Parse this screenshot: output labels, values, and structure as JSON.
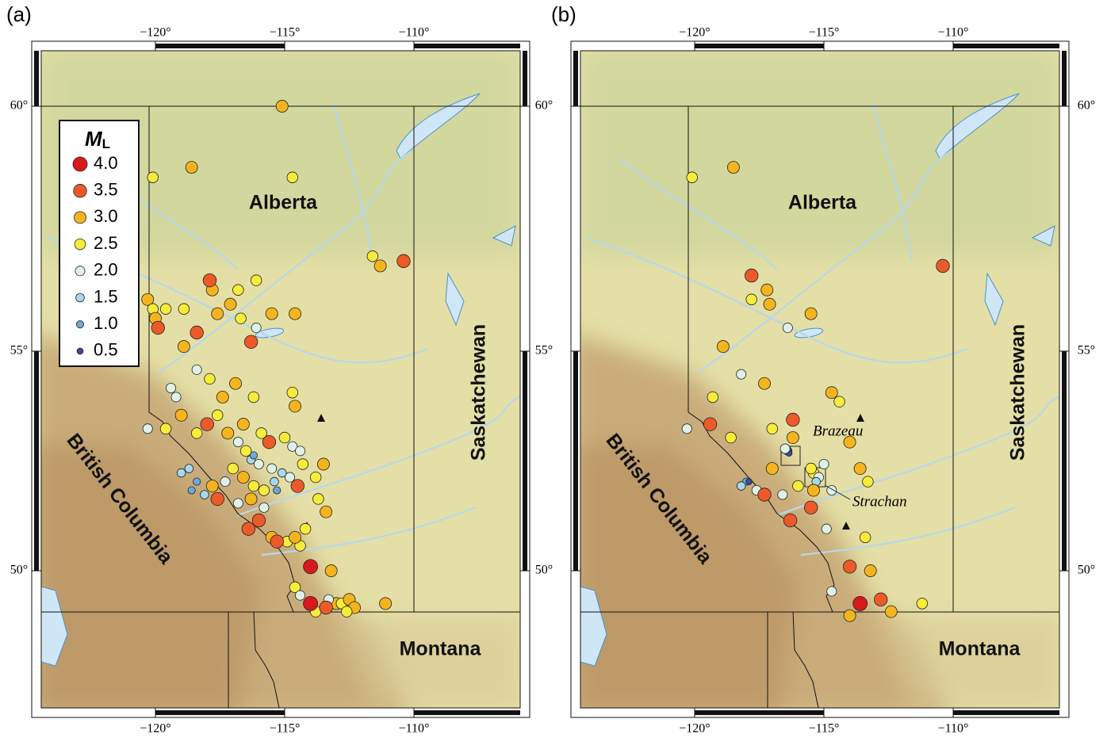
{
  "panels": [
    {
      "label": "(a)",
      "lon_ticks": [
        {
          "value": -120,
          "label": "−120°"
        },
        {
          "value": -115,
          "label": "−115°"
        },
        {
          "value": -110,
          "label": "−110°"
        }
      ],
      "lat_ticks": [
        {
          "value": 60,
          "label": "60°"
        },
        {
          "value": 55,
          "label": "55°"
        },
        {
          "value": 50,
          "label": "50°"
        }
      ],
      "regions": [
        "Alberta",
        "British Columbia",
        "Saskatchewan",
        "Montana"
      ],
      "events": [
        [
          -115.1,
          60.0,
          3.0
        ],
        [
          -120.1,
          58.6,
          2.5
        ],
        [
          -118.6,
          58.8,
          3.0
        ],
        [
          -114.7,
          58.6,
          2.5
        ],
        [
          -117.8,
          56.3,
          3.0
        ],
        [
          -116.8,
          56.3,
          2.5
        ],
        [
          -116.1,
          56.5,
          2.5
        ],
        [
          -111.6,
          57.0,
          2.5
        ],
        [
          -111.3,
          56.8,
          3.0
        ],
        [
          -120.3,
          56.1,
          3.0
        ],
        [
          -120.1,
          55.9,
          2.5
        ],
        [
          -119.6,
          55.9,
          2.5
        ],
        [
          -120.0,
          55.7,
          3.0
        ],
        [
          -118.9,
          55.1,
          3.0
        ],
        [
          -115.5,
          55.8,
          3.0
        ],
        [
          -114.6,
          55.8,
          3.0
        ],
        [
          -118.9,
          55.9,
          2.5
        ],
        [
          -117.6,
          55.8,
          3.0
        ],
        [
          -116.7,
          55.7,
          2.5
        ],
        [
          -117.1,
          56.0,
          3.0
        ],
        [
          -116.1,
          55.5,
          2.0
        ],
        [
          -118.4,
          54.6,
          2.0
        ],
        [
          -117.9,
          54.4,
          2.5
        ],
        [
          -119.4,
          54.2,
          2.0
        ],
        [
          -119.2,
          54.0,
          2.0
        ],
        [
          -117.4,
          54.0,
          3.0
        ],
        [
          -116.9,
          54.3,
          3.0
        ],
        [
          -116.2,
          54.0,
          2.5
        ],
        [
          -114.7,
          54.1,
          2.5
        ],
        [
          -114.6,
          53.8,
          3.0
        ],
        [
          -120.3,
          53.3,
          2.0
        ],
        [
          -119.6,
          53.3,
          2.5
        ],
        [
          -119.0,
          53.6,
          3.0
        ],
        [
          -118.4,
          53.2,
          2.5
        ],
        [
          -117.6,
          53.6,
          2.5
        ],
        [
          -117.2,
          53.2,
          3.0
        ],
        [
          -116.8,
          53.0,
          2.0
        ],
        [
          -116.5,
          52.8,
          2.5
        ],
        [
          -116.3,
          52.6,
          1.5
        ],
        [
          -116.2,
          52.7,
          1.0
        ],
        [
          -116.0,
          52.5,
          2.0
        ],
        [
          -116.6,
          53.4,
          3.0
        ],
        [
          -115.9,
          53.2,
          2.5
        ],
        [
          -115.0,
          53.1,
          2.5
        ],
        [
          -114.7,
          52.9,
          2.0
        ],
        [
          -114.3,
          52.5,
          2.5
        ],
        [
          -113.5,
          52.5,
          3.0
        ],
        [
          -113.8,
          52.2,
          2.5
        ],
        [
          -114.8,
          52.2,
          2.0
        ],
        [
          -115.1,
          52.3,
          1.5
        ],
        [
          -115.4,
          52.1,
          1.5
        ],
        [
          -115.3,
          51.9,
          1.0
        ],
        [
          -115.8,
          51.9,
          2.5
        ],
        [
          -116.2,
          52.0,
          2.5
        ],
        [
          -116.6,
          52.2,
          3.0
        ],
        [
          -117.0,
          52.4,
          2.5
        ],
        [
          -117.3,
          52.1,
          2.0
        ],
        [
          -117.8,
          52.0,
          3.0
        ],
        [
          -118.1,
          51.8,
          1.5
        ],
        [
          -118.4,
          52.1,
          1.0
        ],
        [
          -118.7,
          52.4,
          1.5
        ],
        [
          -119.0,
          52.3,
          1.5
        ],
        [
          -118.6,
          51.9,
          1.0
        ],
        [
          -116.8,
          51.6,
          2.0
        ],
        [
          -116.3,
          51.7,
          3.0
        ],
        [
          -115.8,
          51.5,
          2.0
        ],
        [
          -115.5,
          50.8,
          3.0
        ],
        [
          -114.9,
          50.7,
          2.5
        ],
        [
          -114.4,
          50.6,
          2.5
        ],
        [
          -114.6,
          50.8,
          3.0
        ],
        [
          -114.2,
          51.0,
          2.5
        ],
        [
          -113.4,
          51.4,
          3.0
        ],
        [
          -113.7,
          51.7,
          2.5
        ],
        [
          -113.2,
          50.0,
          3.0
        ],
        [
          -114.6,
          49.6,
          2.5
        ],
        [
          -114.4,
          49.4,
          2.0
        ],
        [
          -113.8,
          49.0,
          2.5
        ],
        [
          -113.0,
          49.2,
          3.0
        ],
        [
          -112.8,
          49.2,
          2.5
        ],
        [
          -112.5,
          49.3,
          3.0
        ],
        [
          -112.3,
          49.1,
          3.0
        ],
        [
          -112.6,
          49.0,
          2.5
        ],
        [
          -111.1,
          49.2,
          3.0
        ],
        [
          -113.3,
          49.3,
          2.0
        ],
        [
          -114.4,
          52.8,
          2.0
        ],
        [
          -115.5,
          52.4,
          2.0
        ],
        [
          -117.9,
          56.5,
          3.5
        ],
        [
          -110.4,
          56.9,
          3.5
        ],
        [
          -119.9,
          55.5,
          3.5
        ],
        [
          -118.4,
          55.4,
          3.5
        ],
        [
          -116.3,
          55.2,
          3.5
        ],
        [
          -118.0,
          53.4,
          3.5
        ],
        [
          -115.6,
          53.0,
          3.5
        ],
        [
          -114.5,
          52.0,
          3.5
        ],
        [
          -117.6,
          51.7,
          3.5
        ],
        [
          -116.0,
          51.2,
          3.5
        ],
        [
          -116.4,
          51.0,
          3.5
        ],
        [
          -115.3,
          50.7,
          3.5
        ],
        [
          -113.4,
          49.1,
          3.5
        ],
        [
          -114.0,
          50.1,
          4.0
        ],
        [
          -114.0,
          49.2,
          4.0
        ]
      ]
    },
    {
      "label": "(b)",
      "lon_ticks": [
        {
          "value": -120,
          "label": "−120°"
        },
        {
          "value": -115,
          "label": "−115°"
        },
        {
          "value": -110,
          "label": "−110°"
        }
      ],
      "lat_ticks": [
        {
          "value": 60,
          "label": "60°"
        },
        {
          "value": 55,
          "label": "55°"
        },
        {
          "value": 50,
          "label": "50°"
        }
      ],
      "regions": [
        "Alberta",
        "British Columbia",
        "Saskatchewan",
        "Montana"
      ],
      "annotations": [
        "Brazeau",
        "Strachan"
      ],
      "events": [
        [
          -120.1,
          58.6,
          2.5
        ],
        [
          -118.5,
          58.8,
          3.0
        ],
        [
          -117.2,
          56.3,
          3.0
        ],
        [
          -117.1,
          56.0,
          3.0
        ],
        [
          -117.8,
          56.1,
          2.5
        ],
        [
          -115.5,
          55.8,
          3.0
        ],
        [
          -116.4,
          55.5,
          2.0
        ],
        [
          -118.9,
          55.1,
          3.0
        ],
        [
          -118.2,
          54.5,
          2.0
        ],
        [
          -117.3,
          54.3,
          3.0
        ],
        [
          -119.3,
          54.0,
          2.5
        ],
        [
          -114.7,
          54.1,
          3.0
        ],
        [
          -114.4,
          53.9,
          2.5
        ],
        [
          -120.3,
          53.3,
          2.0
        ],
        [
          -118.6,
          53.1,
          2.5
        ],
        [
          -117.0,
          53.3,
          2.5
        ],
        [
          -114.0,
          53.0,
          3.0
        ],
        [
          -113.6,
          52.4,
          3.0
        ],
        [
          -113.3,
          52.1,
          2.5
        ],
        [
          -114.7,
          51.9,
          2.0
        ],
        [
          -118.0,
          52.1,
          1.0
        ],
        [
          -117.9,
          52.1,
          0.5
        ],
        [
          -118.2,
          52.0,
          1.5
        ],
        [
          -117.6,
          51.9,
          2.0
        ],
        [
          -114.9,
          51.0,
          2.0
        ],
        [
          -113.4,
          50.8,
          2.5
        ],
        [
          -113.2,
          50.0,
          3.0
        ],
        [
          -114.7,
          49.5,
          2.0
        ],
        [
          -114.0,
          48.9,
          3.0
        ],
        [
          -112.4,
          49.0,
          3.0
        ],
        [
          -111.2,
          49.2,
          2.5
        ],
        [
          -116.4,
          52.8,
          1.5
        ],
        [
          -116.4,
          52.8,
          1.0
        ],
        [
          -116.35,
          52.75,
          0.5
        ],
        [
          -116.5,
          52.85,
          2.0
        ],
        [
          -115.4,
          52.3,
          2.5
        ],
        [
          -115.2,
          52.2,
          2.0
        ],
        [
          -115.5,
          52.4,
          2.5
        ],
        [
          -115.3,
          52.1,
          1.5
        ],
        [
          -115.4,
          51.9,
          3.0
        ],
        [
          -115.0,
          52.5,
          2.0
        ],
        [
          -116.0,
          52.0,
          2.5
        ],
        [
          -116.6,
          51.8,
          2.0
        ],
        [
          -117.0,
          52.4,
          3.0
        ],
        [
          -116.2,
          53.1,
          3.0
        ],
        [
          -117.8,
          56.6,
          3.5
        ],
        [
          -110.4,
          56.8,
          3.5
        ],
        [
          -119.4,
          53.4,
          3.5
        ],
        [
          -116.2,
          53.5,
          3.5
        ],
        [
          -117.3,
          51.8,
          3.5
        ],
        [
          -116.3,
          51.2,
          3.5
        ],
        [
          -115.5,
          51.5,
          3.5
        ],
        [
          -114.0,
          50.1,
          3.5
        ],
        [
          -112.8,
          49.3,
          3.5
        ],
        [
          -113.6,
          49.2,
          4.0
        ]
      ]
    }
  ],
  "legend": {
    "title": "M",
    "subscript": "L",
    "entries": [
      {
        "value": 4.0,
        "label": "4.0",
        "color": "#d7191c"
      },
      {
        "value": 3.5,
        "label": "3.5",
        "color": "#ec5a2a"
      },
      {
        "value": 3.0,
        "label": "3.0",
        "color": "#f4b41e"
      },
      {
        "value": 2.5,
        "label": "2.5",
        "color": "#f6ec3a"
      },
      {
        "value": 2.0,
        "label": "2.0",
        "color": "#dff0e6"
      },
      {
        "value": 1.5,
        "label": "1.5",
        "color": "#a8d8ec"
      },
      {
        "value": 1.0,
        "label": "1.0",
        "color": "#6fa7d8"
      },
      {
        "value": 0.5,
        "label": "0.5",
        "color": "#3a4b9c"
      }
    ]
  }
}
